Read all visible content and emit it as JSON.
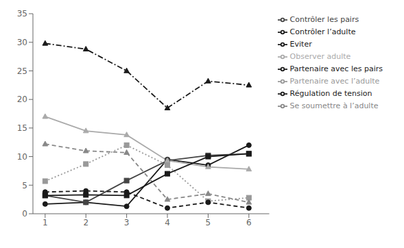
{
  "chart_data": {
    "type": "line",
    "x": [
      1,
      2,
      3,
      4,
      5,
      6
    ],
    "series": [
      {
        "name": "Partenaire avec les pairs",
        "values": [
          1.7,
          2.0,
          1.3,
          9.5,
          8.5,
          12.0
        ],
        "color": "#1a1a1a",
        "line_style": "solid",
        "marker": "circle"
      },
      {
        "name": "Contrôler les pairs",
        "values": [
          3.2,
          2.0,
          5.8,
          9.3,
          10.2,
          10.5
        ],
        "color": "#444444",
        "line_style": "solid",
        "marker": "square"
      },
      {
        "name": "Observer adulte",
        "values": [
          17.0,
          14.5,
          13.8,
          9.3,
          8.2,
          7.8
        ],
        "color": "#aaaaaa",
        "line_style": "solid",
        "marker": "triangle"
      },
      {
        "name": "Partenaire avec l’adulte",
        "values": [
          5.7,
          8.7,
          12.0,
          8.5,
          2.2,
          2.8
        ],
        "color": "#999999",
        "line_style": "dotted",
        "marker": "square"
      },
      {
        "name": "Contrôler l’adulte",
        "values": [
          3.8,
          4.0,
          3.8,
          1.0,
          2.0,
          1.0
        ],
        "color": "#1a1a1a",
        "line_style": "dashed",
        "marker": "circle"
      },
      {
        "name": "Se soumettre à l’adulte",
        "values": [
          12.2,
          11.0,
          10.7,
          2.5,
          3.5,
          2.0
        ],
        "color": "#888888",
        "line_style": "dashed",
        "marker": "triangle"
      },
      {
        "name": "Régulation de tension",
        "values": [
          29.8,
          28.8,
          25.0,
          18.5,
          23.2,
          22.5
        ],
        "color": "#1a1a1a",
        "line_style": "dashdot",
        "marker": "triangle"
      },
      {
        "name": "Eviter",
        "values": [
          3.2,
          3.3,
          3.2,
          7.0,
          10.0,
          10.5
        ],
        "color": "#1a1a1a",
        "line_style": "solid",
        "marker": "square"
      }
    ],
    "xlim": [
      0.7,
      6.5
    ],
    "xticks": [
      1,
      2,
      3,
      4,
      5,
      6
    ],
    "ylim": [
      0,
      35
    ],
    "yticks": [
      0,
      5,
      10,
      15,
      20,
      25,
      30,
      35
    ],
    "grid": false,
    "legend": "upper right"
  }
}
